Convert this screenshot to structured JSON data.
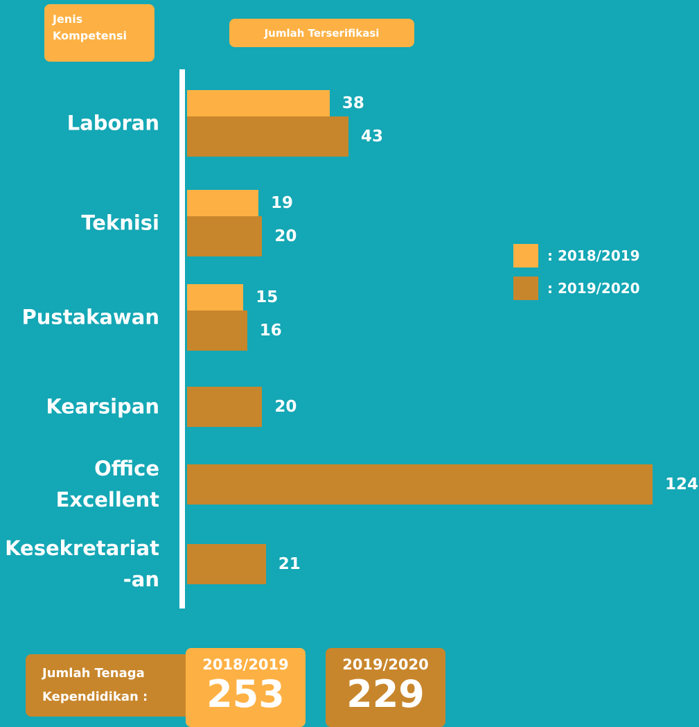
{
  "chart_data": {
    "type": "bar",
    "orientation": "horizontal",
    "category_header": "Jenis\nKompetensi",
    "value_header": "Jumlah Terserifikasi",
    "categories": [
      "Laboran",
      "Teknisi",
      "Pustakawan",
      "Kearsipan",
      "Office\nExcellent",
      "Kesekretariat\n-an"
    ],
    "series": [
      {
        "name": ": 2018/2019",
        "color": "#fdb144",
        "values": [
          38,
          19,
          15,
          null,
          null,
          null
        ]
      },
      {
        "name": ": 2019/2020",
        "color": "#c8862c",
        "values": [
          43,
          20,
          16,
          20,
          124,
          21
        ]
      }
    ],
    "totals": {
      "label": "Jumlah Tenaga\nKependidikan :",
      "items": [
        {
          "period": "2018/2019",
          "value": 253,
          "color": "#fdb144"
        },
        {
          "period": "2019/2020",
          "value": 229,
          "color": "#c8862c"
        }
      ]
    }
  }
}
